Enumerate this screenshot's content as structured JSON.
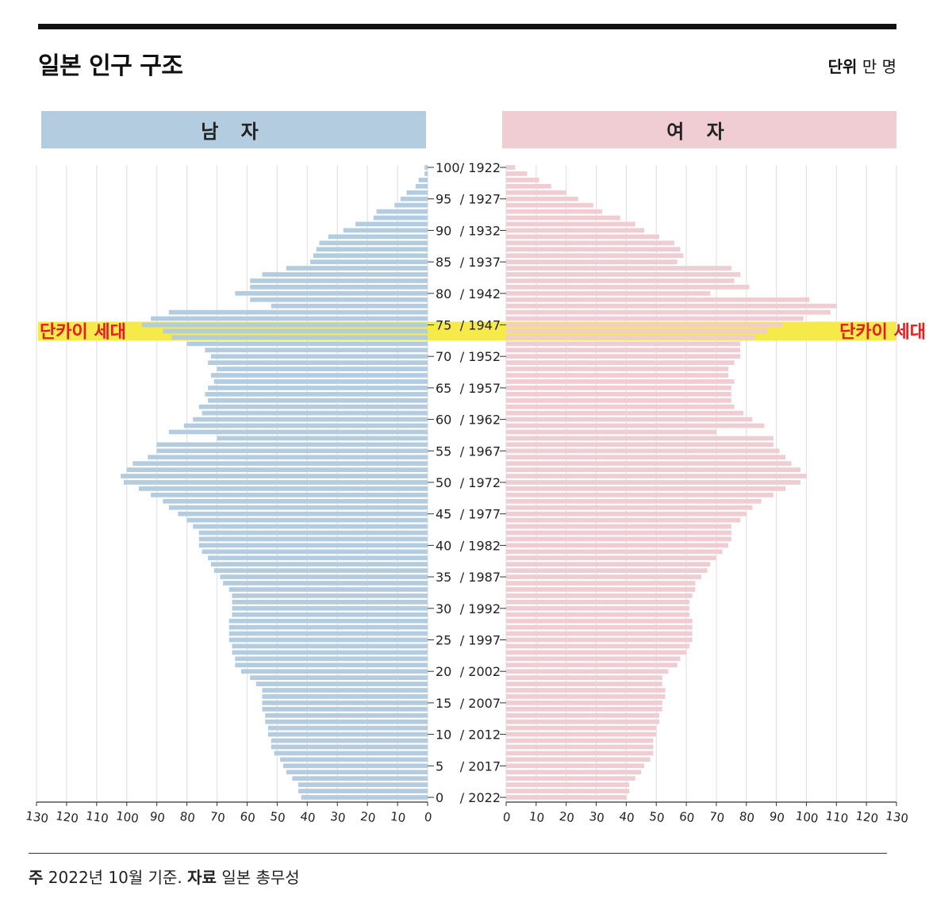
{
  "header": {
    "title": "일본 인구 구조",
    "unit_prefix": "단위",
    "unit_value": "만 명"
  },
  "panels": {
    "male_label": "남 자",
    "female_label": "여 자"
  },
  "highlight": {
    "label": "단카이 세대",
    "ages": [
      73,
      74,
      75
    ],
    "color": "#f6e94a",
    "text_color": "#e02020"
  },
  "footer": {
    "note_prefix": "주",
    "note_text": "2022년 10월 기준.",
    "source_prefix": "자료",
    "source_text": "일본 총무성"
  },
  "chart_data": {
    "type": "bar",
    "orientation": "horizontal",
    "layout": "population-pyramid",
    "categories": [
      0,
      1,
      2,
      3,
      4,
      5,
      6,
      7,
      8,
      9,
      10,
      11,
      12,
      13,
      14,
      15,
      16,
      17,
      18,
      19,
      20,
      21,
      22,
      23,
      24,
      25,
      26,
      27,
      28,
      29,
      30,
      31,
      32,
      33,
      34,
      35,
      36,
      37,
      38,
      39,
      40,
      41,
      42,
      43,
      44,
      45,
      46,
      47,
      48,
      49,
      50,
      51,
      52,
      53,
      54,
      55,
      56,
      57,
      58,
      59,
      60,
      61,
      62,
      63,
      64,
      65,
      66,
      67,
      68,
      69,
      70,
      71,
      72,
      73,
      74,
      75,
      76,
      77,
      78,
      79,
      80,
      81,
      82,
      83,
      84,
      85,
      86,
      87,
      88,
      89,
      90,
      91,
      92,
      93,
      94,
      95,
      96,
      97,
      98,
      99,
      100
    ],
    "tick_labels": [
      "0 / 2022",
      "5 / 2017",
      "10 / 2012",
      "15 / 2007",
      "20 / 2002",
      "25 / 1997",
      "30 / 1992",
      "35 / 1987",
      "40 / 1982",
      "45 / 1977",
      "50 / 1972",
      "55 / 1967",
      "60 / 1962",
      "65 / 1957",
      "70 / 1952",
      "75 / 1947",
      "80 / 1942",
      "85 / 1937",
      "90 / 1932",
      "95 / 1927",
      "100 / 1922"
    ],
    "x_ticks": [
      0,
      10,
      20,
      30,
      40,
      50,
      60,
      70,
      80,
      90,
      100,
      110,
      120,
      130
    ],
    "xlim": [
      0,
      130
    ],
    "series": [
      {
        "name": "남 자",
        "color": "#b4cce0",
        "values": [
          42,
          43,
          43,
          45,
          47,
          48,
          49,
          51,
          52,
          52,
          53,
          53,
          54,
          54,
          55,
          55,
          55,
          55,
          57,
          59,
          62,
          64,
          64,
          65,
          65,
          66,
          66,
          66,
          66,
          65,
          65,
          65,
          65,
          66,
          68,
          69,
          71,
          72,
          73,
          75,
          76,
          76,
          76,
          78,
          80,
          83,
          86,
          88,
          92,
          96,
          101,
          102,
          100,
          98,
          93,
          90,
          90,
          70,
          86,
          81,
          78,
          75,
          76,
          73,
          74,
          73,
          71,
          72,
          70,
          73,
          72,
          74,
          80,
          85,
          88,
          95,
          92,
          86,
          52,
          59,
          64,
          59,
          59,
          55,
          47,
          39,
          38,
          37,
          36,
          33,
          28,
          24,
          18,
          17,
          11,
          9,
          7,
          4,
          3,
          1,
          1
        ]
      },
      {
        "name": "여 자",
        "color": "#efcdd2",
        "values": [
          40,
          41,
          41,
          43,
          45,
          46,
          48,
          49,
          49,
          49,
          50,
          50,
          51,
          51,
          52,
          52,
          53,
          53,
          52,
          52,
          54,
          57,
          58,
          60,
          61,
          62,
          62,
          62,
          62,
          61,
          61,
          61,
          62,
          63,
          63,
          65,
          67,
          68,
          70,
          72,
          74,
          75,
          75,
          75,
          78,
          80,
          82,
          85,
          89,
          93,
          98,
          100,
          98,
          95,
          93,
          91,
          89,
          89,
          70,
          86,
          82,
          79,
          76,
          75,
          75,
          75,
          76,
          74,
          74,
          76,
          78,
          78,
          78,
          83,
          87,
          92,
          99,
          108,
          110,
          101,
          68,
          81,
          76,
          78,
          75,
          57,
          59,
          58,
          56,
          51,
          46,
          43,
          38,
          32,
          29,
          24,
          20,
          15,
          11,
          7,
          3
        ]
      }
    ]
  }
}
